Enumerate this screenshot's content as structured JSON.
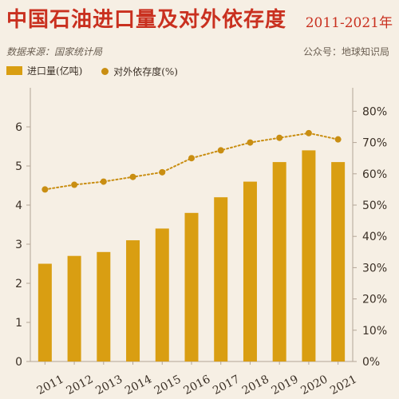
{
  "title": {
    "main": "中国石油进口量及对外依存度",
    "range": "2011-2021年"
  },
  "meta": {
    "source": "数据来源：国家统计局",
    "account": "公众号：地球知识局"
  },
  "colors": {
    "bar": "#d99e12",
    "line": "#c98e12",
    "title": "#c9301f",
    "axis": "#b3a596"
  },
  "chart_data": {
    "type": "bar",
    "categories": [
      "2011",
      "2012",
      "2013",
      "2014",
      "2015",
      "2016",
      "2017",
      "2018",
      "2019",
      "2020",
      "2021"
    ],
    "series": [
      {
        "name": "进口量(亿吨)",
        "type": "bar",
        "axis": "left",
        "values": [
          2.5,
          2.7,
          2.8,
          3.1,
          3.4,
          3.8,
          4.2,
          4.6,
          5.1,
          5.4,
          5.1
        ]
      },
      {
        "name": "对外依存度(%)",
        "type": "line",
        "axis": "right",
        "values": [
          55,
          56.5,
          57.5,
          59,
          60.5,
          65,
          67.5,
          70,
          71.5,
          73,
          71
        ]
      }
    ],
    "y_left": {
      "min": 0,
      "max": 7,
      "ticks": [
        0,
        1,
        2,
        3,
        4,
        5,
        6
      ]
    },
    "y_right": {
      "min": 0,
      "max": 87.5,
      "ticks": [
        "0%",
        "10%",
        "20%",
        "30%",
        "40%",
        "50%",
        "60%",
        "70%",
        "80%"
      ]
    },
    "legend_position": "top-left"
  }
}
